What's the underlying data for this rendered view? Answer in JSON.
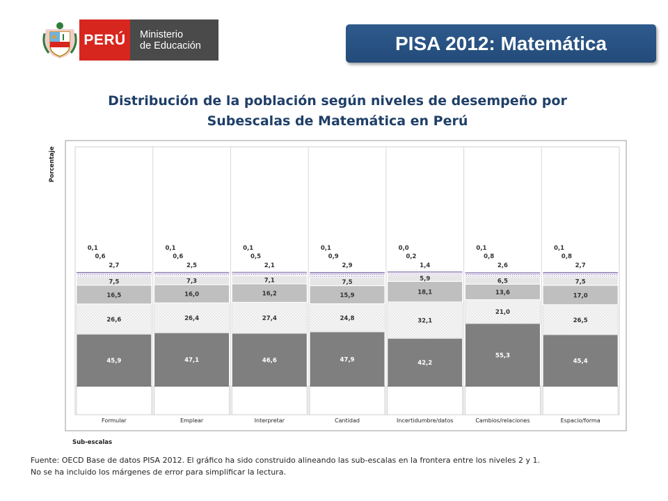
{
  "header": {
    "peru_label": "PERÚ",
    "ministry_line1": "Ministerio",
    "ministry_line2": "de Educación",
    "banner_title": "PISA 2012: Matemática"
  },
  "colors": {
    "peru_red": "#d7261e",
    "ministry_gray": "#4a4a4a",
    "banner_blue": "#2e5a8c",
    "title_blue": "#1f3f68"
  },
  "chart_data": {
    "type": "bar",
    "stacked": true,
    "title": "Distribución de la población según niveles de desempeño por Subescalas de Matemática en Perú",
    "ylabel": "Porcentaje",
    "xlabel": "Sub-escalas",
    "alignment_note": "alineado en la frontera entre los niveles 2 y 1",
    "categories": [
      "Formular",
      "Emplear",
      "Interpretar",
      "Cantidad",
      "Incertidumbre/datos",
      "Cambios/relaciones",
      "Espacio/forma"
    ],
    "series": [
      {
        "values": [
          45.9,
          47.1,
          46.6,
          47.9,
          42.2,
          55.3,
          45.4
        ],
        "color": "#7f7f7f"
      },
      {
        "values": [
          26.6,
          26.4,
          27.4,
          24.8,
          32.1,
          21.0,
          26.5
        ],
        "color": "#f2f2f2"
      },
      {
        "values": [
          16.5,
          16.0,
          16.2,
          15.9,
          18.1,
          13.6,
          17.0
        ],
        "color": "#bfbfbf"
      },
      {
        "values": [
          7.5,
          7.3,
          7.1,
          7.5,
          5.9,
          6.5,
          7.5
        ],
        "color": "#e6e6e6"
      },
      {
        "values": [
          2.7,
          2.5,
          2.1,
          2.9,
          1.4,
          2.6,
          2.7
        ],
        "color": "#ebe6f2"
      },
      {
        "values": [
          0.6,
          0.6,
          0.5,
          0.9,
          0.2,
          0.8,
          0.8
        ],
        "color": "#b3a6cc"
      },
      {
        "values": [
          0.1,
          0.1,
          0.1,
          0.1,
          0.0,
          0.1,
          0.1
        ],
        "color": "#7a6aa6"
      }
    ],
    "value_labels": [
      [
        "45,9",
        "47,1",
        "46,6",
        "47,9",
        "42,2",
        "55,3",
        "45,4"
      ],
      [
        "26,6",
        "26,4",
        "27,4",
        "24,8",
        "32,1",
        "21,0",
        "26,5"
      ],
      [
        "16,5",
        "16,0",
        "16,2",
        "15,9",
        "18,1",
        "13,6",
        "17,0"
      ],
      [
        "7,5",
        "7,3",
        "7,1",
        "7,5",
        "5,9",
        "6,5",
        "7,5"
      ],
      [
        "2,7",
        "2,5",
        "2,1",
        "2,9",
        "1,4",
        "2,6",
        "2,7"
      ],
      [
        "0,6",
        "0,6",
        "0,5",
        "0,9",
        "0,2",
        "0,8",
        "0,8"
      ],
      [
        "0,1",
        "0,1",
        "0,1",
        "0,1",
        "0,0",
        "0,1",
        "0,1"
      ]
    ]
  },
  "source": {
    "line1": "Fuente: OECD Base de datos PISA 2012. El gráfico ha sido construido alineando las sub-escalas en la frontera entre los niveles 2 y 1.",
    "line2": "No se ha incluido los márgenes de error para simplificar la lectura."
  }
}
